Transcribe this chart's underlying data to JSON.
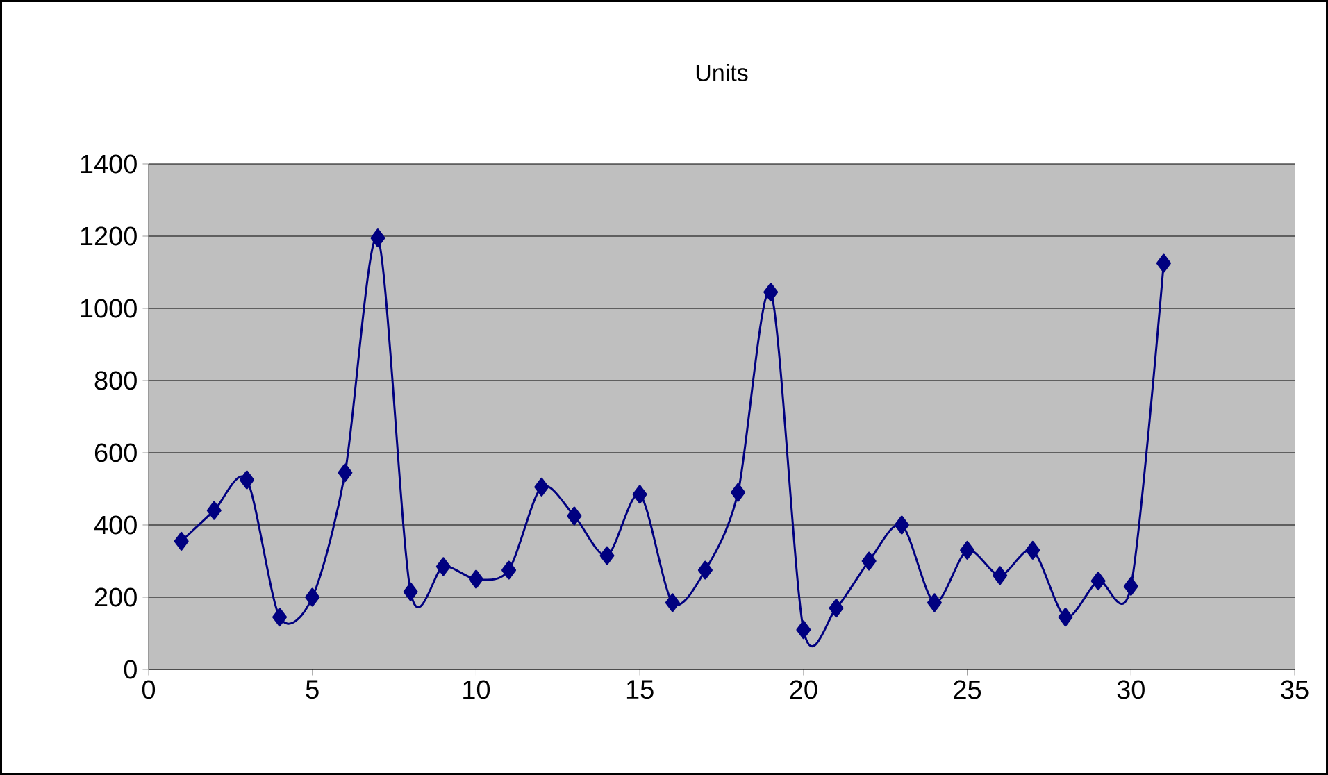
{
  "chart_data": {
    "type": "line",
    "title": "Units",
    "x": [
      1,
      2,
      3,
      4,
      5,
      6,
      7,
      8,
      9,
      10,
      11,
      12,
      13,
      14,
      15,
      16,
      17,
      18,
      19,
      20,
      21,
      22,
      23,
      24,
      25,
      26,
      27,
      28,
      29,
      30,
      31
    ],
    "series": [
      {
        "color": "#000080",
        "values": [
          355,
          440,
          525,
          145,
          200,
          545,
          1195,
          215,
          285,
          250,
          275,
          505,
          425,
          315,
          485,
          185,
          275,
          490,
          1045,
          110,
          170,
          300,
          400,
          185,
          330,
          260,
          330,
          145,
          245,
          230,
          1125
        ]
      }
    ],
    "xlim": [
      0,
      35
    ],
    "xticks": [
      0,
      5,
      10,
      15,
      20,
      25,
      30,
      35
    ],
    "ylim": [
      0,
      1400
    ],
    "yticks": [
      0,
      200,
      400,
      600,
      800,
      1000,
      1200,
      1400
    ],
    "grid": "y",
    "marker": "diamond",
    "line_style": "solid"
  }
}
